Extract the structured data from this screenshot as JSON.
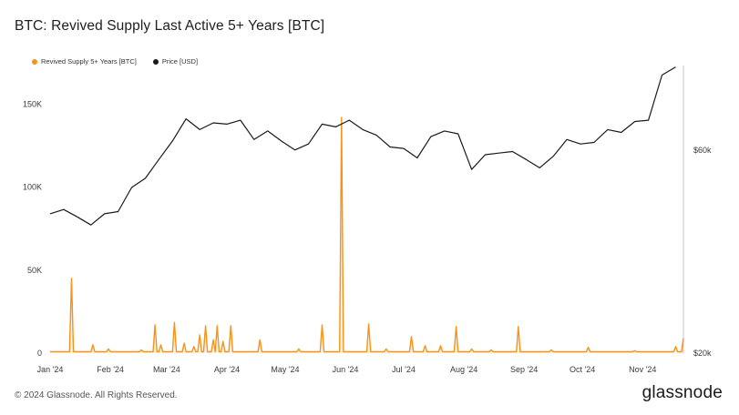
{
  "title": "BTC: Revived Supply Last Active 5+ Years [BTC]",
  "footer": {
    "copyright": "© 2024 Glassnode. All Rights Reserved.",
    "brand": "glassnode"
  },
  "colors": {
    "supply": "#f7931a",
    "price": "#1a1a1a",
    "axis": "#c8c8c8"
  },
  "chart_data": {
    "type": "line",
    "legend_position": "top-left",
    "grid": false,
    "x": [
      "2024-01-01",
      "2024-01-08",
      "2024-01-15",
      "2024-01-22",
      "2024-01-29",
      "2024-02-05",
      "2024-02-12",
      "2024-02-19",
      "2024-02-26",
      "2024-03-04",
      "2024-03-11",
      "2024-03-18",
      "2024-03-25",
      "2024-04-01",
      "2024-04-08",
      "2024-04-15",
      "2024-04-22",
      "2024-04-29",
      "2024-05-06",
      "2024-05-13",
      "2024-05-20",
      "2024-05-27",
      "2024-06-03",
      "2024-06-10",
      "2024-06-17",
      "2024-06-24",
      "2024-07-01",
      "2024-07-08",
      "2024-07-15",
      "2024-07-22",
      "2024-07-29",
      "2024-08-05",
      "2024-08-12",
      "2024-08-19",
      "2024-08-26",
      "2024-09-02",
      "2024-09-09",
      "2024-09-16",
      "2024-09-23",
      "2024-09-30",
      "2024-10-07",
      "2024-10-14",
      "2024-10-21",
      "2024-10-28",
      "2024-11-04",
      "2024-11-11",
      "2024-11-18"
    ],
    "x_ticks": [
      "Jan '24",
      "Feb '24",
      "Mar '24",
      "Apr '24",
      "May '24",
      "Jun '24",
      "Jul '24",
      "Aug '24",
      "Sep '24",
      "Oct '24",
      "Nov '24"
    ],
    "x_tick_dates": [
      "2024-01-01",
      "2024-02-01",
      "2024-03-01",
      "2024-04-01",
      "2024-05-01",
      "2024-06-01",
      "2024-07-01",
      "2024-08-01",
      "2024-09-01",
      "2024-10-01",
      "2024-11-01"
    ],
    "x_range": [
      "2024-01-01",
      "2024-11-22"
    ],
    "left_axis": {
      "ticks": [
        0,
        50000,
        100000,
        150000
      ],
      "tick_labels": [
        "0",
        "50K",
        "100K",
        "150K"
      ],
      "range": [
        0,
        170000
      ]
    },
    "right_axis": {
      "scale": "log",
      "ticks": [
        20000,
        60000
      ],
      "tick_labels": [
        "$20k",
        "$60k"
      ],
      "range": [
        20000,
        92000
      ]
    },
    "series": [
      {
        "name": "Revived Supply 5+ Years [BTC]",
        "axis": "left",
        "style": "area",
        "baseline": 800,
        "spikes": [
          {
            "date": "2024-01-12",
            "value": 45000
          },
          {
            "date": "2024-01-23",
            "value": 5000
          },
          {
            "date": "2024-01-31",
            "value": 2500
          },
          {
            "date": "2024-02-17",
            "value": 2000
          },
          {
            "date": "2024-02-24",
            "value": 17000
          },
          {
            "date": "2024-02-27",
            "value": 5000
          },
          {
            "date": "2024-03-05",
            "value": 18500
          },
          {
            "date": "2024-03-10",
            "value": 6000
          },
          {
            "date": "2024-03-15",
            "value": 4000
          },
          {
            "date": "2024-03-18",
            "value": 11000
          },
          {
            "date": "2024-03-21",
            "value": 16500
          },
          {
            "date": "2024-03-25",
            "value": 8000
          },
          {
            "date": "2024-03-27",
            "value": 16500
          },
          {
            "date": "2024-03-30",
            "value": 7000
          },
          {
            "date": "2024-04-03",
            "value": 16500
          },
          {
            "date": "2024-04-18",
            "value": 8000
          },
          {
            "date": "2024-05-08",
            "value": 2500
          },
          {
            "date": "2024-05-20",
            "value": 17000
          },
          {
            "date": "2024-05-30",
            "value": 142000
          },
          {
            "date": "2024-06-13",
            "value": 17500
          },
          {
            "date": "2024-06-22",
            "value": 2500
          },
          {
            "date": "2024-07-05",
            "value": 10000
          },
          {
            "date": "2024-07-12",
            "value": 4500
          },
          {
            "date": "2024-07-20",
            "value": 4500
          },
          {
            "date": "2024-07-28",
            "value": 16000
          },
          {
            "date": "2024-08-05",
            "value": 2500
          },
          {
            "date": "2024-08-15",
            "value": 2000
          },
          {
            "date": "2024-08-29",
            "value": 16000
          },
          {
            "date": "2024-09-15",
            "value": 2000
          },
          {
            "date": "2024-10-04",
            "value": 3500
          },
          {
            "date": "2024-10-28",
            "value": 1500
          },
          {
            "date": "2024-11-18",
            "value": 4000
          },
          {
            "date": "2024-11-22",
            "value": 9000
          }
        ]
      },
      {
        "name": "Price [USD]",
        "axis": "right",
        "style": "line",
        "values": [
          42500,
          43500,
          41800,
          40000,
          42500,
          43000,
          49000,
          51500,
          57000,
          63000,
          71000,
          67000,
          69500,
          69000,
          70500,
          63500,
          66500,
          63000,
          60000,
          62000,
          69000,
          68000,
          70500,
          67000,
          65000,
          61000,
          60500,
          57500,
          64500,
          66500,
          65500,
          54000,
          58500,
          59000,
          59500,
          57000,
          54500,
          58000,
          63500,
          62000,
          62500,
          67000,
          66000,
          70000,
          70500,
          90000,
          94000
        ]
      }
    ]
  }
}
